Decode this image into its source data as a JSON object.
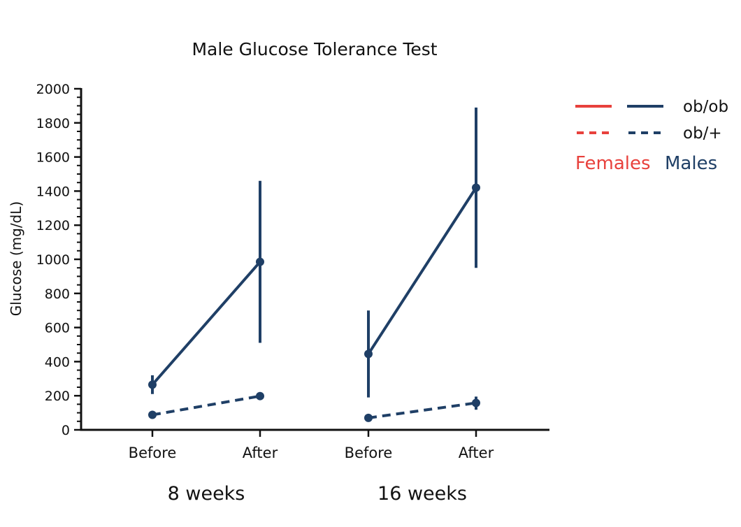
{
  "chart_data": {
    "type": "line",
    "title": "Male Glucose Tolerance Test",
    "ylabel": "Glucose (mg/dL)",
    "xlabel": "",
    "ylim": [
      0,
      2000
    ],
    "yticks": [
      0,
      200,
      400,
      600,
      800,
      1000,
      1200,
      1400,
      1600,
      1800,
      2000
    ],
    "yticks_minor_step": 50,
    "categories": [
      "Before",
      "After",
      "Before",
      "After"
    ],
    "groups": [
      {
        "label": "8 weeks",
        "categories": [
          0,
          1
        ]
      },
      {
        "label": "16 weeks",
        "categories": [
          2,
          3
        ]
      }
    ],
    "series": [
      {
        "name": "ob/ob",
        "sex": "Males",
        "style": "solid",
        "color": "#1f3f66",
        "segments": [
          {
            "points": [
              {
                "x": 0,
                "y": 265,
                "err_low": 210,
                "err_high": 320
              },
              {
                "x": 1,
                "y": 985,
                "err_low": 510,
                "err_high": 1460
              }
            ]
          },
          {
            "points": [
              {
                "x": 2,
                "y": 445,
                "err_low": 190,
                "err_high": 700
              },
              {
                "x": 3,
                "y": 1420,
                "err_low": 950,
                "err_high": 1890
              }
            ]
          }
        ]
      },
      {
        "name": "ob/+",
        "sex": "Males",
        "style": "dashed",
        "color": "#1f3f66",
        "segments": [
          {
            "points": [
              {
                "x": 0,
                "y": 88,
                "err_low": 80,
                "err_high": 96
              },
              {
                "x": 1,
                "y": 198,
                "err_low": 188,
                "err_high": 208
              }
            ]
          },
          {
            "points": [
              {
                "x": 2,
                "y": 70,
                "err_low": 62,
                "err_high": 78
              },
              {
                "x": 3,
                "y": 158,
                "err_low": 118,
                "err_high": 195
              }
            ]
          }
        ]
      }
    ],
    "legend": {
      "position": "top-right",
      "entries": [
        {
          "label": "ob/ob",
          "style": "solid"
        },
        {
          "label": "ob/+",
          "style": "dashed"
        }
      ],
      "sexes": [
        {
          "label": "Females",
          "color": "#e8413c"
        },
        {
          "label": "Males",
          "color": "#1f3f66"
        }
      ]
    }
  },
  "colors": {
    "females": "#e8413c",
    "males": "#1f3f66",
    "axis": "#111111"
  }
}
